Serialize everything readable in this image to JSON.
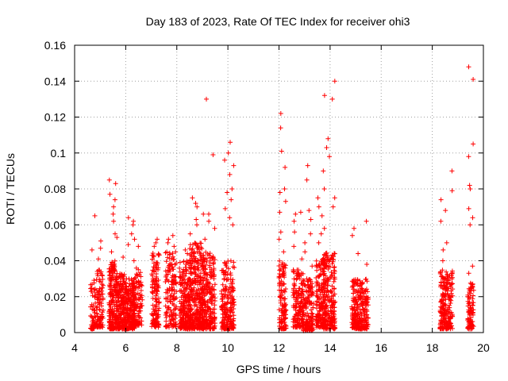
{
  "chart_data": {
    "type": "scatter",
    "title": "Day 183 of 2023, Rate Of TEC Index for receiver ohi3",
    "xlabel": "GPS time / hours",
    "ylabel": "ROTI / TECUs",
    "xlim": [
      4,
      20
    ],
    "ylim": [
      0,
      0.16
    ],
    "xticks": [
      "4",
      "6",
      "8",
      "10",
      "12",
      "14",
      "16",
      "18",
      "20"
    ],
    "yticks": [
      "0",
      "0.02",
      "0.04",
      "0.06",
      "0.08",
      "0.1",
      "0.12",
      "0.14",
      "0.16"
    ],
    "grid": true,
    "marker": "+",
    "color": "#ff0000",
    "clusters": [
      {
        "x": [
          4.62,
          4.82
        ],
        "ymin": 0.002,
        "ymax": 0.03,
        "n": 55,
        "peaks": [
          0.046,
          0.065
        ]
      },
      {
        "x": [
          4.85,
          5.12
        ],
        "ymin": 0.003,
        "ymax": 0.035,
        "n": 90,
        "peaks": [
          0.041,
          0.047,
          0.051
        ]
      },
      {
        "x": [
          5.35,
          5.62
        ],
        "ymin": 0.002,
        "ymax": 0.04,
        "n": 170,
        "peaks": [
          0.045,
          0.055,
          0.062,
          0.066,
          0.07,
          0.074,
          0.077,
          0.083,
          0.085
        ]
      },
      {
        "x": [
          5.62,
          6.0
        ],
        "ymin": 0.002,
        "ymax": 0.033,
        "n": 230,
        "peaks": [
          0.042,
          0.053
        ]
      },
      {
        "x": [
          6.0,
          6.35
        ],
        "ymin": 0.002,
        "ymax": 0.03,
        "n": 200,
        "peaks": [
          0.049,
          0.055,
          0.06,
          0.064
        ]
      },
      {
        "x": [
          6.3,
          6.65
        ],
        "ymin": 0.004,
        "ymax": 0.036,
        "n": 110,
        "peaks": [
          0.04,
          0.048,
          0.052,
          0.062
        ]
      },
      {
        "x": [
          7.0,
          7.32
        ],
        "ymin": 0.003,
        "ymax": 0.045,
        "n": 130,
        "peaks": [
          0.048,
          0.05,
          0.052
        ]
      },
      {
        "x": [
          7.55,
          7.98
        ],
        "ymin": 0.003,
        "ymax": 0.045,
        "n": 140,
        "peaks": [
          0.048,
          0.05,
          0.052,
          0.054
        ]
      },
      {
        "x": [
          8.1,
          8.55
        ],
        "ymin": 0.002,
        "ymax": 0.04,
        "n": 230,
        "peaks": [
          0.044,
          0.046
        ]
      },
      {
        "x": [
          8.5,
          9.05
        ],
        "ymin": 0.002,
        "ymax": 0.05,
        "n": 320,
        "peaks": [
          0.055,
          0.06,
          0.063,
          0.066,
          0.07,
          0.072,
          0.075
        ]
      },
      {
        "x": [
          9.0,
          9.5
        ],
        "ymin": 0.002,
        "ymax": 0.045,
        "n": 240,
        "peaks": [
          0.052,
          0.058,
          0.062,
          0.066,
          0.099,
          0.13
        ]
      },
      {
        "x": [
          9.75,
          10.25
        ],
        "ymin": 0.002,
        "ymax": 0.04,
        "n": 200,
        "peaks": [
          0.06,
          0.064,
          0.069,
          0.074,
          0.078,
          0.08,
          0.088,
          0.093,
          0.096,
          0.1,
          0.106
        ]
      },
      {
        "x": [
          12.0,
          12.28
        ],
        "ymin": 0.002,
        "ymax": 0.04,
        "n": 120,
        "peaks": [
          0.045,
          0.052,
          0.056,
          0.067,
          0.073,
          0.078,
          0.08,
          0.092,
          0.101,
          0.114,
          0.122
        ]
      },
      {
        "x": [
          12.55,
          12.95
        ],
        "ymin": 0.003,
        "ymax": 0.035,
        "n": 150,
        "peaks": [
          0.041,
          0.048,
          0.056,
          0.062,
          0.066,
          0.067
        ]
      },
      {
        "x": [
          12.95,
          13.35
        ],
        "ymin": 0.001,
        "ymax": 0.03,
        "n": 150,
        "peaks": [
          0.037,
          0.045,
          0.05,
          0.055,
          0.063,
          0.068,
          0.085,
          0.093
        ]
      },
      {
        "x": [
          13.45,
          13.82
        ],
        "ymin": 0.003,
        "ymax": 0.04,
        "n": 150,
        "peaks": [
          0.05,
          0.055,
          0.058,
          0.065,
          0.07,
          0.075
        ]
      },
      {
        "x": [
          13.7,
          14.2
        ],
        "ymin": 0.002,
        "ymax": 0.045,
        "n": 230,
        "peaks": [
          0.07,
          0.075,
          0.08,
          0.09,
          0.098,
          0.103,
          0.108,
          0.13,
          0.132,
          0.14
        ]
      },
      {
        "x": [
          14.85,
          15.5
        ],
        "ymin": 0.002,
        "ymax": 0.03,
        "n": 260,
        "peaks": [
          0.038,
          0.044,
          0.054,
          0.058,
          0.062
        ]
      },
      {
        "x": [
          18.3,
          18.8
        ],
        "ymin": 0.002,
        "ymax": 0.035,
        "n": 220,
        "peaks": [
          0.04,
          0.046,
          0.05,
          0.062,
          0.068,
          0.074,
          0.079,
          0.09
        ]
      },
      {
        "x": [
          19.38,
          19.62
        ],
        "ymin": 0.002,
        "ymax": 0.028,
        "n": 90,
        "peaks": [
          0.033,
          0.037,
          0.06,
          0.064,
          0.069,
          0.08,
          0.082,
          0.098,
          0.105,
          0.141,
          0.148
        ]
      }
    ]
  }
}
